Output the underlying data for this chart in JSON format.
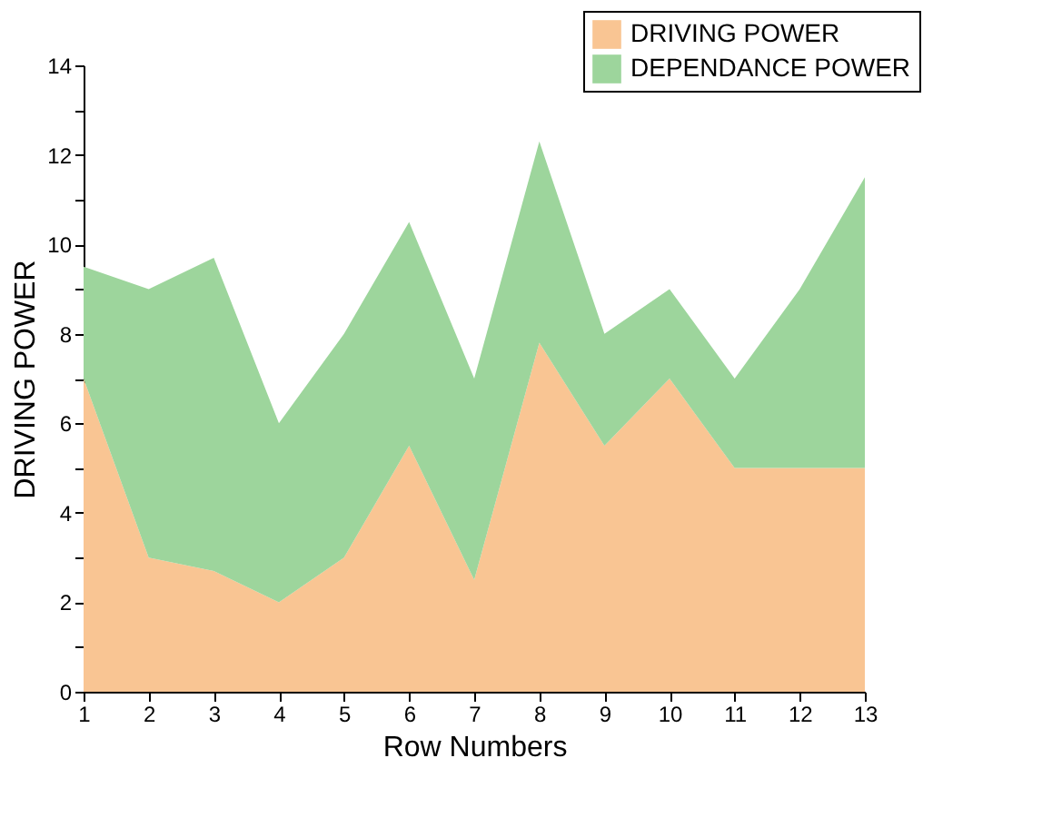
{
  "chart_data": {
    "type": "area",
    "stacked": true,
    "xlabel": "Row Numbers",
    "ylabel": "DRIVING POWER",
    "x": [
      1,
      2,
      3,
      4,
      5,
      6,
      7,
      8,
      9,
      10,
      11,
      12,
      13
    ],
    "series": [
      {
        "name": "DRIVING POWER",
        "color": "#f9c593",
        "values": [
          7,
          3,
          2.7,
          2,
          3,
          5.5,
          2.5,
          7.8,
          5.5,
          7,
          5,
          5,
          5
        ]
      },
      {
        "name": "DEPENDANCE POWER",
        "color": "#9dd59c",
        "values": [
          2.5,
          6,
          7,
          4,
          5,
          5,
          4.5,
          4.5,
          2.5,
          2,
          2,
          4,
          6.5
        ]
      }
    ],
    "xlim": [
      1,
      13
    ],
    "xticks": [
      1,
      2,
      3,
      4,
      5,
      6,
      7,
      8,
      9,
      10,
      11,
      12,
      13
    ],
    "ylim": [
      0,
      14
    ],
    "yticks": [
      0,
      {
        "value": 1,
        "label": null
      },
      2,
      {
        "value": 3,
        "label": null
      },
      4,
      {
        "value": 5,
        "label": null
      },
      6,
      {
        "value": 7,
        "label": null
      },
      8,
      {
        "value": 9,
        "label": null
      },
      10,
      {
        "value": 11,
        "label": null
      },
      12,
      {
        "value": 13,
        "label": null
      },
      14
    ],
    "grid": false,
    "legend": "top right"
  }
}
